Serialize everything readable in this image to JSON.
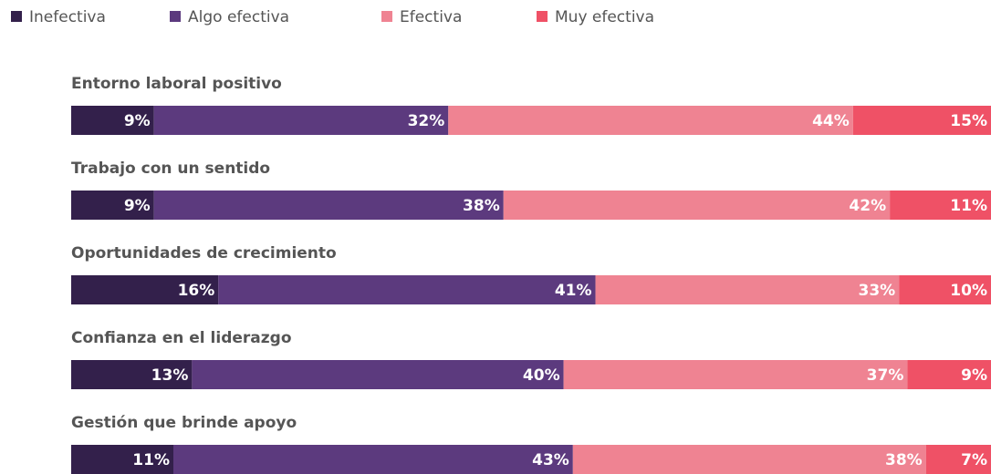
{
  "chart_data": {
    "type": "stacked-bar-horizontal",
    "categories": [
      "Entorno laboral positivo",
      "Trabajo con un sentido",
      "Oportunidades de crecimiento",
      "Confianza en el liderazgo",
      "Gestión que brinde apoyo"
    ],
    "series": [
      {
        "name": "Inefectiva",
        "color": "#33204b",
        "values": [
          9,
          9,
          16,
          13,
          11
        ],
        "value_labels": [
          "9%",
          "9%",
          "16%",
          "13%",
          "11%"
        ]
      },
      {
        "name": "Algo efectiva",
        "color": "#5c3a7e",
        "values": [
          32,
          38,
          41,
          40,
          43
        ],
        "value_labels": [
          "32%",
          "38%",
          "41%",
          "40%",
          "43%"
        ]
      },
      {
        "name": "Efectiva",
        "color": "#ef8392",
        "values": [
          44,
          42,
          33,
          37,
          38
        ],
        "value_labels": [
          "44%",
          "42%",
          "33%",
          "37%",
          "38%"
        ]
      },
      {
        "name": "Muy efectiva",
        "color": "#ef5166",
        "values": [
          15,
          11,
          10,
          9,
          7
        ],
        "value_labels": [
          "15%",
          "11%",
          "10%",
          "9%",
          "7%"
        ]
      }
    ],
    "legend": "top-left"
  }
}
